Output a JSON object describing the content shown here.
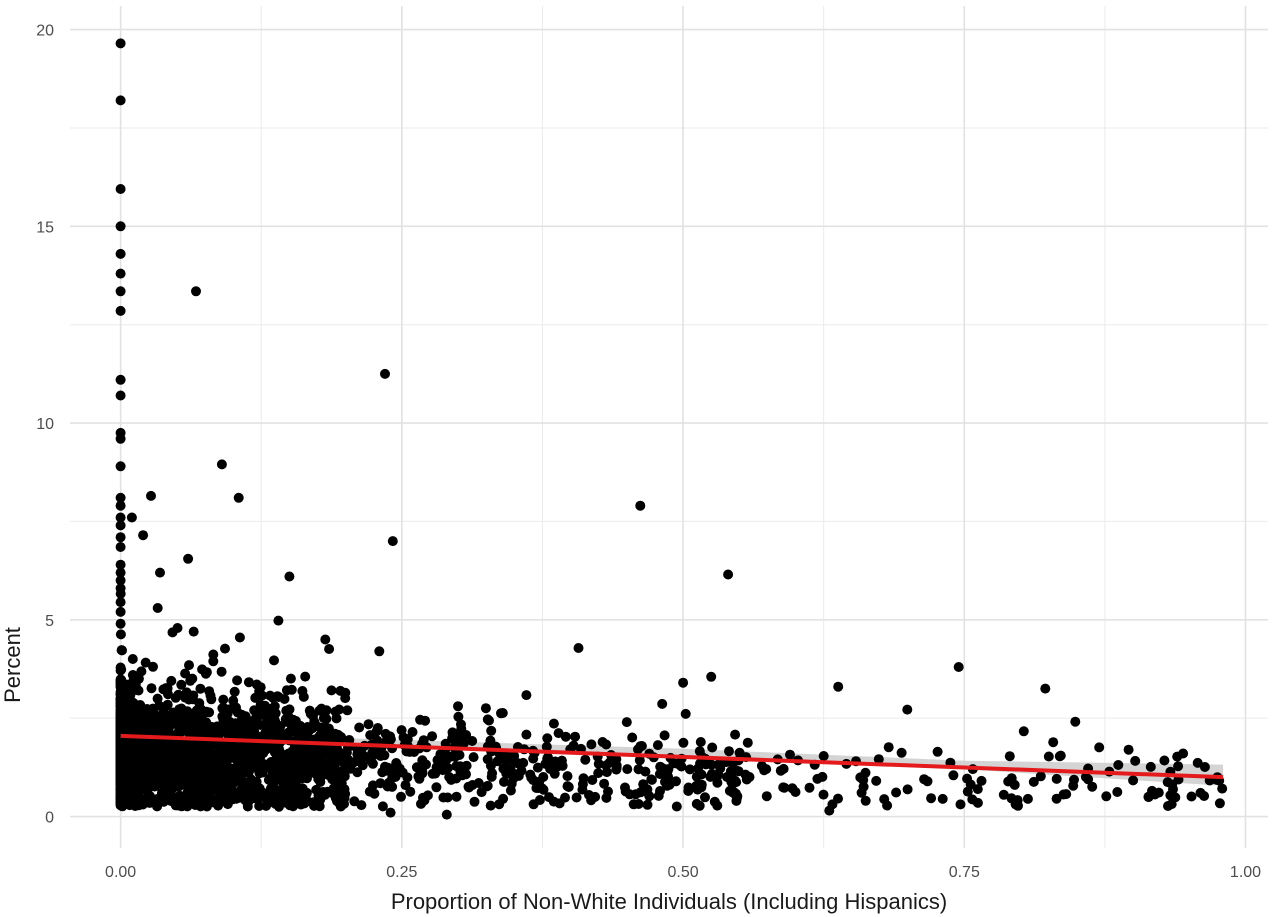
{
  "chart_data": {
    "type": "scatter",
    "title": "",
    "xlabel": "Proportion of Non-White Individuals (Including Hispanics)",
    "ylabel": "Percent",
    "xlim": [
      -0.045,
      1.02
    ],
    "ylim": [
      -0.8,
      20.6
    ],
    "x_ticks": [
      0,
      0.25,
      0.5,
      0.75,
      1
    ],
    "x_tick_labels": [
      "0.00",
      "0.25",
      "0.50",
      "0.75",
      "1.00"
    ],
    "y_ticks": [
      0,
      5,
      10,
      15,
      20
    ],
    "y_tick_labels": [
      "0",
      "5",
      "10",
      "15",
      "20"
    ],
    "grid": true,
    "theme": "minimal",
    "point_color": "#000000",
    "fit_line": {
      "method": "linear",
      "x": [
        0,
        0.98
      ],
      "y": [
        2.05,
        1.0
      ],
      "color": "#e41a1c",
      "ci_band": {
        "x": [
          0,
          0.25,
          0.5,
          0.75,
          0.98
        ],
        "lower": [
          1.95,
          1.75,
          1.52,
          1.2,
          0.78
        ],
        "upper": [
          2.15,
          1.95,
          1.72,
          1.42,
          1.32
        ],
        "color": "#cccccc"
      }
    },
    "outliers": {
      "x": [
        0,
        0,
        0,
        0,
        0,
        0,
        0,
        0,
        0,
        0,
        0,
        0,
        0,
        0,
        0,
        0,
        0,
        0,
        0,
        0,
        0,
        0,
        0,
        0,
        0,
        0,
        0.067,
        0.235,
        0.09,
        0.027,
        0.105,
        0.242,
        0.462,
        0.54,
        0.15,
        0.06,
        0.035,
        0.01,
        0.02,
        0.033,
        0.745,
        0.822,
        0.525,
        0.106,
        0.065,
        0.182,
        0.23,
        0.5,
        0.45,
        0.008,
        0.015,
        0.96,
        0.975,
        0.63,
        0.29,
        0.24
      ],
      "y": [
        19.65,
        18.2,
        15.95,
        15.0,
        14.3,
        13.8,
        13.35,
        12.85,
        11.1,
        10.7,
        9.75,
        9.6,
        8.9,
        8.1,
        7.9,
        7.6,
        7.4,
        7.1,
        6.85,
        6.4,
        6.2,
        6.0,
        5.8,
        5.45,
        5.2,
        4.9,
        13.35,
        11.25,
        8.95,
        8.15,
        8.1,
        7.0,
        7.9,
        6.15,
        6.1,
        6.55,
        6.2,
        7.6,
        7.15,
        5.3,
        3.8,
        3.25,
        3.55,
        4.55,
        4.7,
        4.5,
        4.2,
        3.4,
        2.4,
        3.0,
        2.6,
        0.6,
        1.0,
        0.15,
        0.05,
        0.1
      ]
    },
    "bulk_points_note_free": true,
    "bulk": {
      "count": 2400,
      "seed": 12345
    }
  }
}
